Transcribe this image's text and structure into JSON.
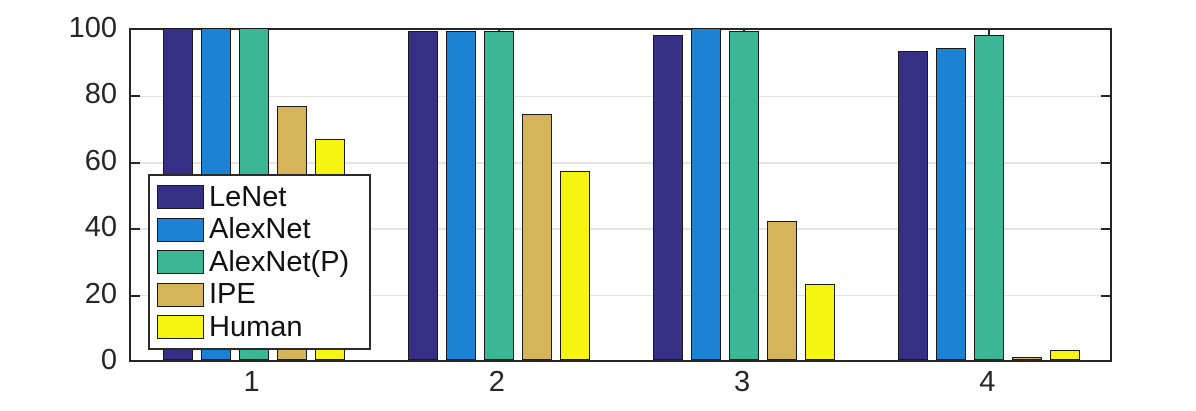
{
  "chart_data": {
    "type": "bar",
    "title": "",
    "xlabel": "",
    "ylabel": "",
    "categories": [
      "1",
      "2",
      "3",
      "4"
    ],
    "series": [
      {
        "name": "LeNet",
        "color": "#372F85",
        "values": [
          100,
          99,
          98,
          93
        ]
      },
      {
        "name": "AlexNet",
        "color": "#1B82D4",
        "values": [
          100,
          99,
          100,
          94
        ]
      },
      {
        "name": "AlexNet(P)",
        "color": "#3BB795",
        "values": [
          100,
          99,
          99,
          98
        ]
      },
      {
        "name": "IPE",
        "color": "#D5B45A",
        "values": [
          76.5,
          74,
          42,
          1
        ]
      },
      {
        "name": "Human",
        "color": "#F6F411",
        "values": [
          66.5,
          57,
          23,
          3
        ]
      }
    ],
    "ylim": [
      0,
      100
    ],
    "yticks": [
      0,
      20,
      40,
      60,
      80,
      100
    ],
    "grid": true,
    "legend_position": "inside-lower-left",
    "colors": {
      "axis": "#262626",
      "grid": "#e4e4e4",
      "bar_edge": "#1a1a1a",
      "tick_label": "#262626",
      "background": "#ffffff"
    }
  }
}
